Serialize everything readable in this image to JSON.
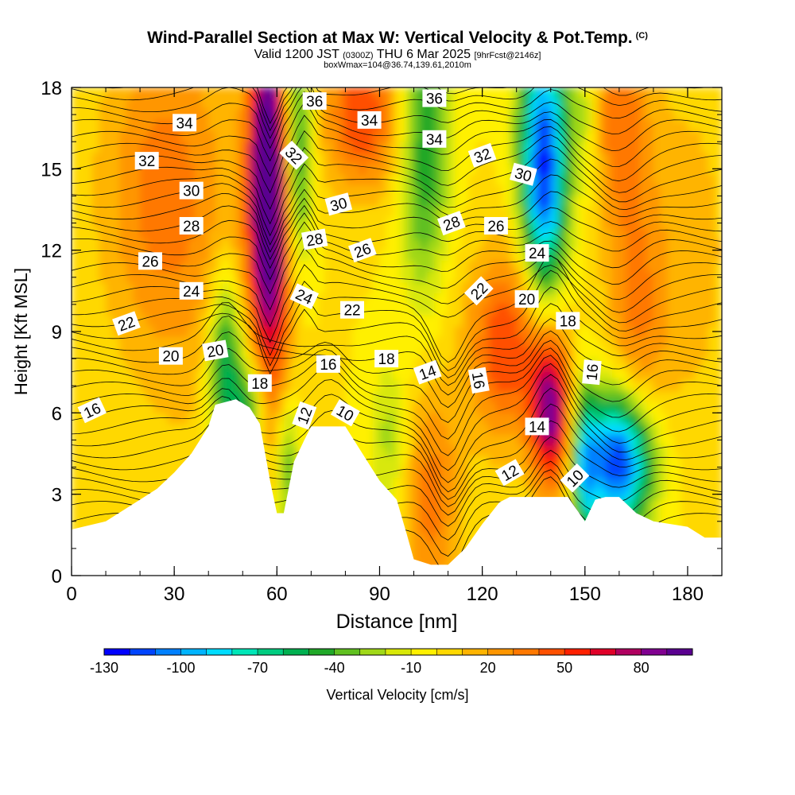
{
  "header": {
    "title": "Wind-Parallel Section at Max W: Vertical Velocity & Pot.Temp.",
    "copyright": "(C)",
    "valid_main": "Valid 1200 JST",
    "valid_utc": "(0300Z)",
    "valid_date": "THU 6 Mar 2025",
    "forecast": "[9hrFcst@2146z]",
    "box_info": "boxWmax=104@36.74,139.61,2010m"
  },
  "chart_data": {
    "type": "heatmap",
    "xlabel": "Distance [nm]",
    "ylabel": "Height [Kft MSL]",
    "xlim": [
      0,
      190
    ],
    "ylim": [
      0,
      18
    ],
    "xticks": [
      "0",
      "30",
      "60",
      "90",
      "120",
      "150",
      "180"
    ],
    "yticks": [
      "0",
      "3",
      "6",
      "9",
      "12",
      "15",
      "18"
    ],
    "colorbar": {
      "label": "Vertical Velocity [cm/s]",
      "tick_labels": [
        "-130",
        "-100",
        "-70",
        "-40",
        "-10",
        "20",
        "50",
        "80"
      ],
      "levels": [
        -130,
        -120,
        -110,
        -100,
        -90,
        -80,
        -70,
        -60,
        -50,
        -40,
        -30,
        -20,
        -10,
        0,
        10,
        20,
        30,
        40,
        50,
        60,
        70,
        80,
        90
      ],
      "colors": [
        "#0000ff",
        "#0044ff",
        "#0080ff",
        "#00b4ff",
        "#00dcff",
        "#00e6b8",
        "#00cc80",
        "#00b050",
        "#20a828",
        "#60c020",
        "#a0d818",
        "#d8e808",
        "#fff000",
        "#ffd800",
        "#ffb400",
        "#ff9600",
        "#ff7800",
        "#ff5000",
        "#ff2000",
        "#e00028",
        "#b00060",
        "#800090",
        "#5a0090"
      ]
    },
    "terrain_kft": [
      [
        0,
        1.7
      ],
      [
        10,
        2
      ],
      [
        15,
        2.4
      ],
      [
        20,
        2.8
      ],
      [
        25,
        3.2
      ],
      [
        30,
        3.8
      ],
      [
        35,
        4.5
      ],
      [
        40,
        5.5
      ],
      [
        42,
        6.3
      ],
      [
        48,
        6.5
      ],
      [
        52,
        6.2
      ],
      [
        55,
        5.6
      ],
      [
        58,
        3.5
      ],
      [
        60,
        2.3
      ],
      [
        62,
        2.3
      ],
      [
        65,
        4.2
      ],
      [
        68,
        5.0
      ],
      [
        70,
        5.5
      ],
      [
        80,
        5.5
      ],
      [
        85,
        4.5
      ],
      [
        90,
        3.5
      ],
      [
        95,
        2.8
      ],
      [
        98,
        1.5
      ],
      [
        100,
        0.6
      ],
      [
        105,
        0.4
      ],
      [
        110,
        0.4
      ],
      [
        115,
        1.0
      ],
      [
        120,
        1.9
      ],
      [
        125,
        2.7
      ],
      [
        128,
        2.9
      ],
      [
        145,
        2.9
      ],
      [
        150,
        2.0
      ],
      [
        153,
        2.8
      ],
      [
        156,
        2.9
      ],
      [
        160,
        2.9
      ],
      [
        165,
        2.3
      ],
      [
        170,
        2.0
      ],
      [
        180,
        1.8
      ],
      [
        185,
        1.4
      ],
      [
        190,
        1.4
      ]
    ],
    "vertical_velocity_cells": [
      {
        "x": 0,
        "y": 8.0,
        "v": 0,
        "sx": 30,
        "sy": 12
      },
      {
        "x": 25,
        "y": 14.5,
        "v": 25,
        "sx": 12,
        "sy": 4
      },
      {
        "x": 35,
        "y": 12.0,
        "v": 15,
        "sx": 15,
        "sy": 6
      },
      {
        "x": 45,
        "y": 7.5,
        "v": -65,
        "sx": 3.5,
        "sy": 2.5
      },
      {
        "x": 52,
        "y": 6.0,
        "v": -55,
        "sx": 3,
        "sy": 1.5
      },
      {
        "x": 58,
        "y": 12.5,
        "v": 85,
        "sx": 4.5,
        "sy": 4.5
      },
      {
        "x": 57,
        "y": 16.0,
        "v": 55,
        "sx": 3.5,
        "sy": 3
      },
      {
        "x": 66,
        "y": 15.5,
        "v": -60,
        "sx": 3,
        "sy": 3
      },
      {
        "x": 63,
        "y": 4.0,
        "v": -40,
        "sx": 2.5,
        "sy": 2
      },
      {
        "x": 85,
        "y": 17.0,
        "v": 50,
        "sx": 8,
        "sy": 2
      },
      {
        "x": 103,
        "y": 16.0,
        "v": -50,
        "sx": 5,
        "sy": 4
      },
      {
        "x": 105,
        "y": 3.0,
        "v": 35,
        "sx": 6,
        "sy": 3
      },
      {
        "x": 93,
        "y": 5.0,
        "v": -25,
        "sx": 4,
        "sy": 2
      },
      {
        "x": 127,
        "y": 8.5,
        "v": 50,
        "sx": 8,
        "sy": 2.5
      },
      {
        "x": 140,
        "y": 6.0,
        "v": 85,
        "sx": 4,
        "sy": 2
      },
      {
        "x": 138,
        "y": 16.0,
        "v": -105,
        "sx": 5,
        "sy": 3
      },
      {
        "x": 138,
        "y": 12.5,
        "v": -40,
        "sx": 4,
        "sy": 2.5
      },
      {
        "x": 150,
        "y": 17.0,
        "v": -20,
        "sx": 3,
        "sy": 2
      },
      {
        "x": 160,
        "y": 4.2,
        "v": -130,
        "sx": 7,
        "sy": 1.8
      },
      {
        "x": 150,
        "y": 4.0,
        "v": -60,
        "sx": 2.5,
        "sy": 2
      },
      {
        "x": 165,
        "y": 8.8,
        "v": 30,
        "sx": 6,
        "sy": 4
      },
      {
        "x": 160,
        "y": 17.0,
        "v": 35,
        "sx": 6,
        "sy": 3
      },
      {
        "x": 180,
        "y": 12.0,
        "v": 15,
        "sx": 10,
        "sy": 5
      }
    ],
    "theta_contours": {
      "levels": [
        10,
        12,
        14,
        16,
        18,
        20,
        22,
        24,
        26,
        28,
        30,
        32,
        34,
        36
      ],
      "labels": [
        {
          "text": "34",
          "x": 33,
          "y": 16.7,
          "rot": 0
        },
        {
          "text": "32",
          "x": 22,
          "y": 15.3,
          "rot": 0
        },
        {
          "text": "30",
          "x": 35,
          "y": 14.2,
          "rot": 0
        },
        {
          "text": "28",
          "x": 35,
          "y": 12.9,
          "rot": 0
        },
        {
          "text": "26",
          "x": 23,
          "y": 11.6,
          "rot": 0
        },
        {
          "text": "24",
          "x": 35,
          "y": 10.5,
          "rot": 0
        },
        {
          "text": "22",
          "x": 16,
          "y": 9.3,
          "rot": -20
        },
        {
          "text": "20",
          "x": 29,
          "y": 8.1,
          "rot": 0
        },
        {
          "text": "20",
          "x": 42,
          "y": 8.3,
          "rot": -10
        },
        {
          "text": "16",
          "x": 6,
          "y": 6.1,
          "rot": -25
        },
        {
          "text": "18",
          "x": 55,
          "y": 7.1,
          "rot": 0
        },
        {
          "text": "36",
          "x": 71,
          "y": 17.5,
          "rot": 0
        },
        {
          "text": "34",
          "x": 87,
          "y": 16.8,
          "rot": 0
        },
        {
          "text": "32",
          "x": 65,
          "y": 15.5,
          "rot": 45
        },
        {
          "text": "30",
          "x": 78,
          "y": 13.7,
          "rot": -15
        },
        {
          "text": "28",
          "x": 71,
          "y": 12.4,
          "rot": -10
        },
        {
          "text": "26",
          "x": 85,
          "y": 12.0,
          "rot": -20
        },
        {
          "text": "24",
          "x": 68,
          "y": 10.3,
          "rot": 25
        },
        {
          "text": "22",
          "x": 82,
          "y": 9.8,
          "rot": 0
        },
        {
          "text": "16",
          "x": 75,
          "y": 7.8,
          "rot": 0
        },
        {
          "text": "18",
          "x": 92,
          "y": 8.0,
          "rot": 0
        },
        {
          "text": "12",
          "x": 68,
          "y": 5.9,
          "rot": -70
        },
        {
          "text": "10",
          "x": 80,
          "y": 6.0,
          "rot": 30
        },
        {
          "text": "36",
          "x": 106,
          "y": 17.6,
          "rot": 0
        },
        {
          "text": "34",
          "x": 106,
          "y": 16.1,
          "rot": 0
        },
        {
          "text": "32",
          "x": 120,
          "y": 15.5,
          "rot": -20
        },
        {
          "text": "30",
          "x": 132,
          "y": 14.8,
          "rot": 15
        },
        {
          "text": "28",
          "x": 111,
          "y": 13.0,
          "rot": -20
        },
        {
          "text": "26",
          "x": 124,
          "y": 12.9,
          "rot": 0
        },
        {
          "text": "24",
          "x": 136,
          "y": 11.9,
          "rot": 0
        },
        {
          "text": "22",
          "x": 119,
          "y": 10.5,
          "rot": -45
        },
        {
          "text": "20",
          "x": 133,
          "y": 10.2,
          "rot": 0
        },
        {
          "text": "18",
          "x": 145,
          "y": 9.4,
          "rot": 0
        },
        {
          "text": "14",
          "x": 104,
          "y": 7.5,
          "rot": -20
        },
        {
          "text": "16",
          "x": 119,
          "y": 7.2,
          "rot": 80
        },
        {
          "text": "16",
          "x": 152,
          "y": 7.5,
          "rot": -85
        },
        {
          "text": "14",
          "x": 136,
          "y": 5.5,
          "rot": 0
        },
        {
          "text": "12",
          "x": 128,
          "y": 3.8,
          "rot": -30
        },
        {
          "text": "10",
          "x": 147,
          "y": 3.6,
          "rot": -45
        }
      ]
    }
  }
}
